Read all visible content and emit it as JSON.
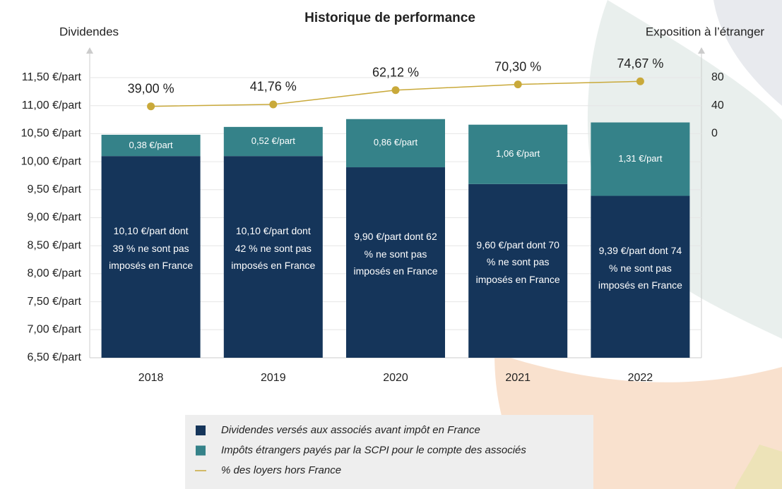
{
  "chart_data": {
    "type": "bar",
    "stacked": true,
    "title": "Historique de performance",
    "ylabel": "Dividendes",
    "y2label": "Exposition à l’étranger",
    "categories": [
      "2018",
      "2019",
      "2020",
      "2021",
      "2022"
    ],
    "ylim": [
      6.5,
      11.5
    ],
    "yticks": [
      {
        "value": 6.5,
        "label": "6,50 €/part"
      },
      {
        "value": 7,
        "label": "7,00 €/part"
      },
      {
        "value": 7.5,
        "label": "7,50 €/part"
      },
      {
        "value": 8,
        "label": "8,00 €/part"
      },
      {
        "value": 8.5,
        "label": "8,50 €/part"
      },
      {
        "value": 9,
        "label": "9,00 €/part"
      },
      {
        "value": 9.5,
        "label": "9,50 €/part"
      },
      {
        "value": 10,
        "label": "10,00 €/part"
      },
      {
        "value": 10.5,
        "label": "10,50 €/part"
      },
      {
        "value": 11,
        "label": "11,00 €/part"
      },
      {
        "value": 11.5,
        "label": "11,50 €/part"
      }
    ],
    "y2lim": [
      -320,
      80
    ],
    "y2ticks": [
      0,
      40,
      80
    ],
    "grid": true,
    "series": [
      {
        "name": "Dividendes versés aux associés avant impôt en France",
        "type": "bar",
        "color": "#15355a",
        "values": [
          10.1,
          10.1,
          9.9,
          9.6,
          9.39
        ],
        "value_labels": [
          "10,10 €/part dont 39 % ne sont pas imposés en France",
          "10,10 €/part dont 42 % ne sont pas imposés en France",
          "9,90 €/part dont 62 % ne sont pas imposés en France",
          "9,60 €/part dont 70 % ne sont pas imposés en France",
          "9,39 €/part dont 74 % ne sont pas imposés en France"
        ]
      },
      {
        "name": "Impôts étrangers payés par la SCPI pour le compte des associés",
        "type": "bar",
        "color": "#358289",
        "values": [
          0.38,
          0.52,
          0.86,
          1.06,
          1.31
        ],
        "value_labels": [
          "0,38 €/part",
          "0,52 €/part",
          "0,86 €/part",
          "1,06 €/part",
          "1,31 €/part"
        ]
      },
      {
        "name": "% des loyers hors France",
        "type": "line",
        "axis": "y2",
        "color": "#c9a93a",
        "values": [
          39.0,
          41.76,
          62.12,
          70.3,
          74.67
        ],
        "value_labels": [
          "39,00 %",
          "41,76 %",
          "62,12 %",
          "70,30 %",
          "74,67 %"
        ]
      }
    ]
  }
}
